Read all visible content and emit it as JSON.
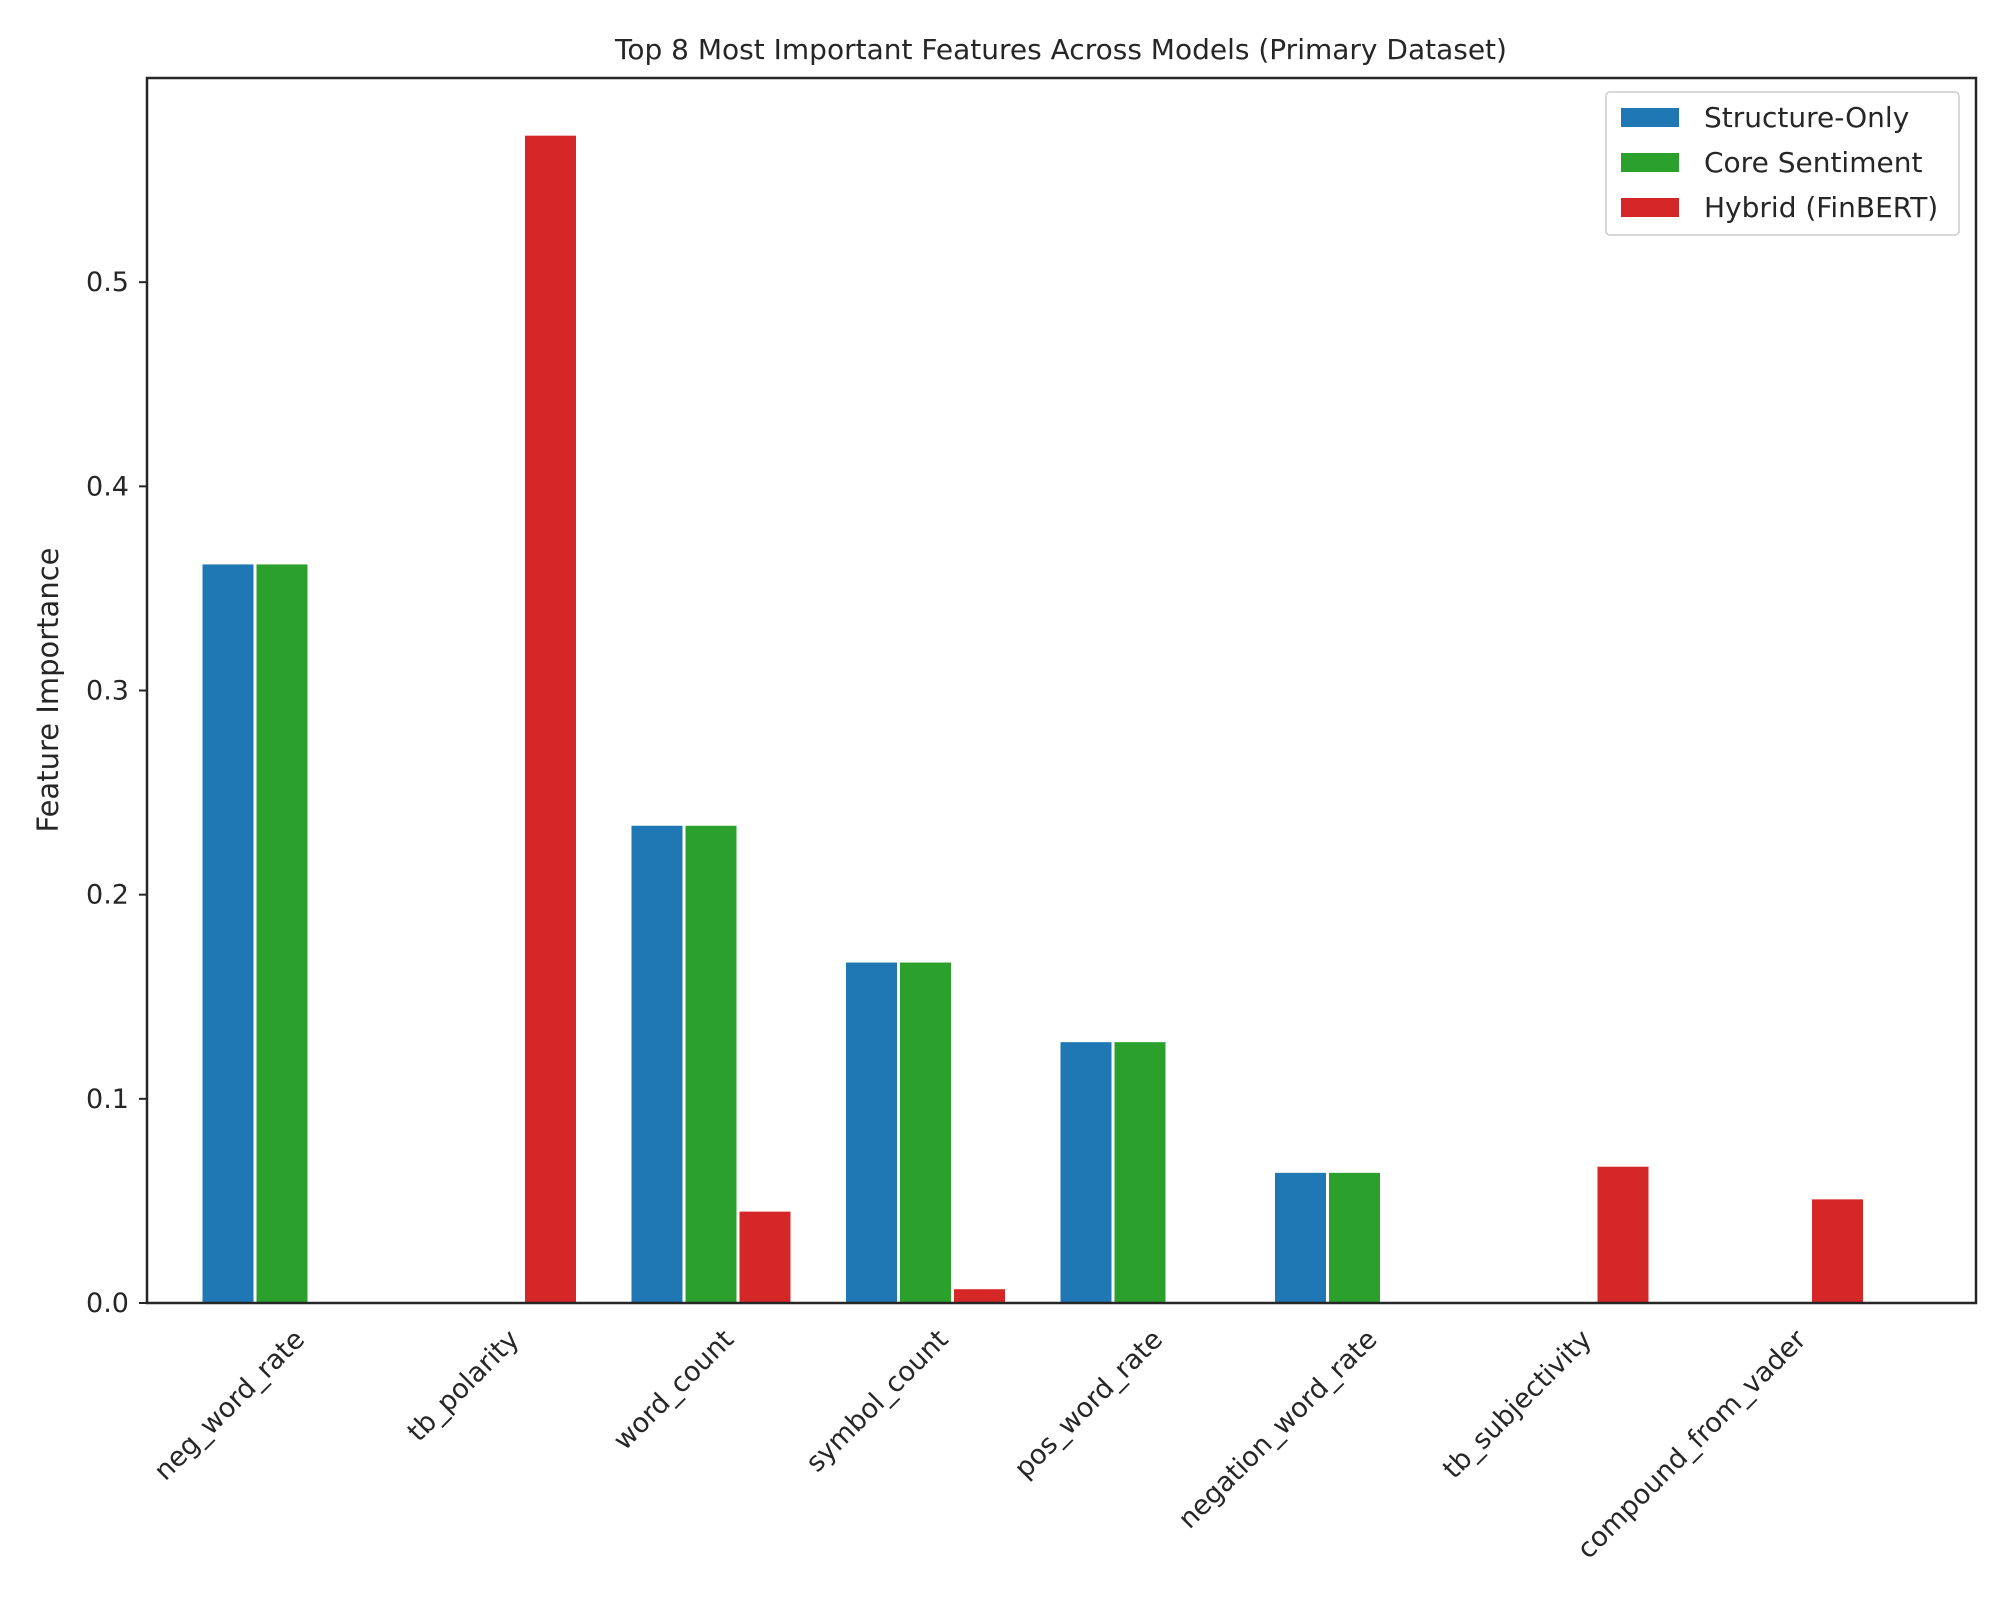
{
  "chart_data": {
    "type": "bar",
    "title": "Top 8 Most Important Features Across Models (Primary Dataset)",
    "xlabel": "",
    "ylabel": "Feature Importance",
    "ylim": [
      0,
      0.6
    ],
    "yticks": [
      0.0,
      0.1,
      0.2,
      0.3,
      0.4,
      0.5
    ],
    "ytick_labels": [
      "0.0",
      "0.1",
      "0.2",
      "0.3",
      "0.4",
      "0.5"
    ],
    "categories": [
      "neg_word_rate",
      "tb_polarity",
      "word_count",
      "symbol_count",
      "pos_word_rate",
      "negation_word_rate",
      "tb_subjectivity",
      "compound_from_vader"
    ],
    "series": [
      {
        "name": "Structure-Only",
        "color": "#1f77b4",
        "values": [
          0.362,
          0.0,
          0.234,
          0.167,
          0.128,
          0.064,
          0.0,
          0.0
        ]
      },
      {
        "name": "Core Sentiment",
        "color": "#2ca02c",
        "values": [
          0.362,
          0.0,
          0.234,
          0.167,
          0.128,
          0.064,
          0.0,
          0.0
        ]
      },
      {
        "name": "Hybrid (FinBERT)",
        "color": "#d62728",
        "values": [
          0.0,
          0.572,
          0.045,
          0.007,
          0.0,
          0.0,
          0.067,
          0.051
        ]
      }
    ],
    "grid": false,
    "legend_position": "top-right"
  }
}
